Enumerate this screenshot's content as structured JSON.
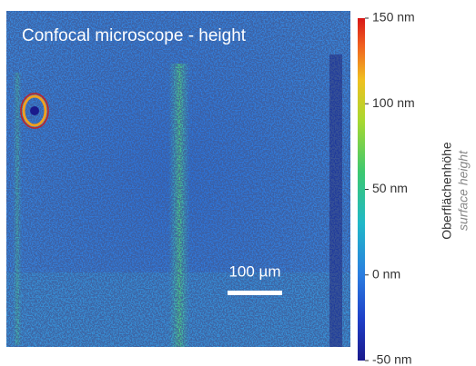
{
  "image": {
    "title": "Confocal microscope - height",
    "scale_bar": "100 µm"
  },
  "colorbar": {
    "range": [
      -50,
      150
    ],
    "ticks": [
      {
        "value": 150,
        "label": "150 nm"
      },
      {
        "value": 100,
        "label": "100 nm"
      },
      {
        "value": 50,
        "label": "50 nm"
      },
      {
        "value": 0,
        "label": "0 nm"
      },
      {
        "value": -50,
        "label": "-50 nm"
      }
    ],
    "title": "Oberflächenhöhe",
    "subtitle": "surface height"
  }
}
